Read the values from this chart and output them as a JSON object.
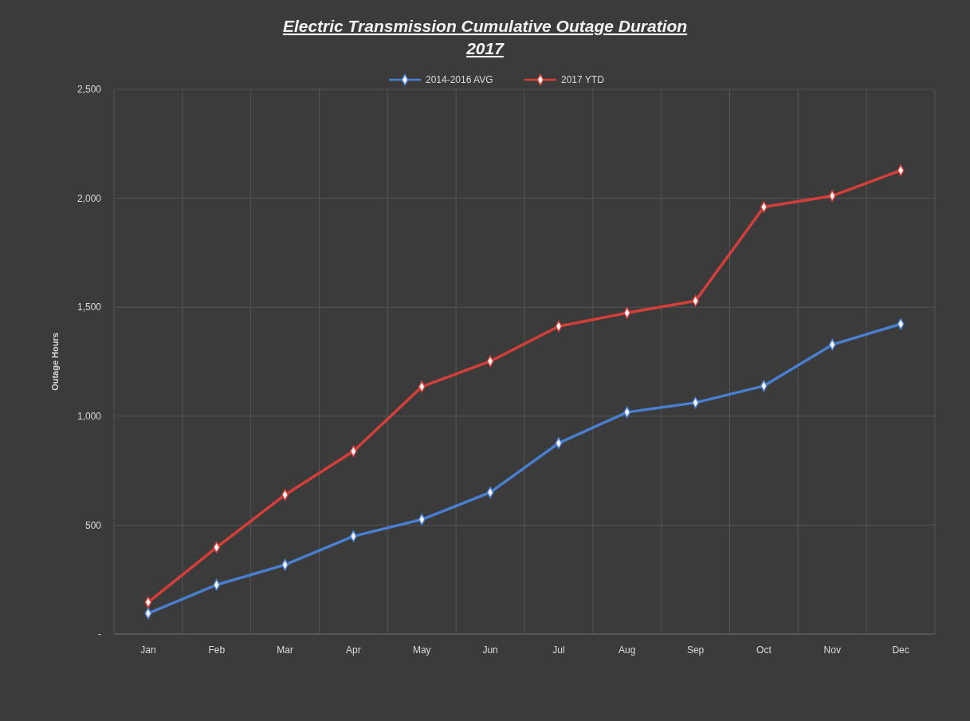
{
  "chart_data": {
    "type": "line",
    "title": "Electric Transmission Cumulative Outage Duration\n2017",
    "ylabel": "Outage Hours",
    "categories": [
      "Jan",
      "Feb",
      "Mar",
      "Apr",
      "May",
      "Jun",
      "Jul",
      "Aug",
      "Sep",
      "Oct",
      "Nov",
      "Dec"
    ],
    "series": [
      {
        "name": "2014-2016 AVG",
        "color": "#4a7fd0",
        "values": [
          95,
          226,
          318,
          449,
          526,
          650,
          876,
          1018,
          1062,
          1139,
          1328,
          1423
        ]
      },
      {
        "name": "2017 YTD",
        "color": "#d43f3a",
        "values": [
          146,
          398,
          639,
          839,
          1135,
          1252,
          1412,
          1474,
          1529,
          1960,
          2011,
          2128
        ]
      }
    ],
    "ylim": [
      0,
      2500
    ],
    "yticks": [
      {
        "value": 0,
        "label": "-"
      },
      500,
      {
        "value": 1000,
        "label": "1,000"
      },
      {
        "value": 1500,
        "label": "1,500"
      },
      {
        "value": 2000,
        "label": "2,000"
      },
      {
        "value": 2500,
        "label": "2,500"
      }
    ],
    "grid": true,
    "legend": "top",
    "marker": "diamond",
    "line_style": "solid"
  }
}
